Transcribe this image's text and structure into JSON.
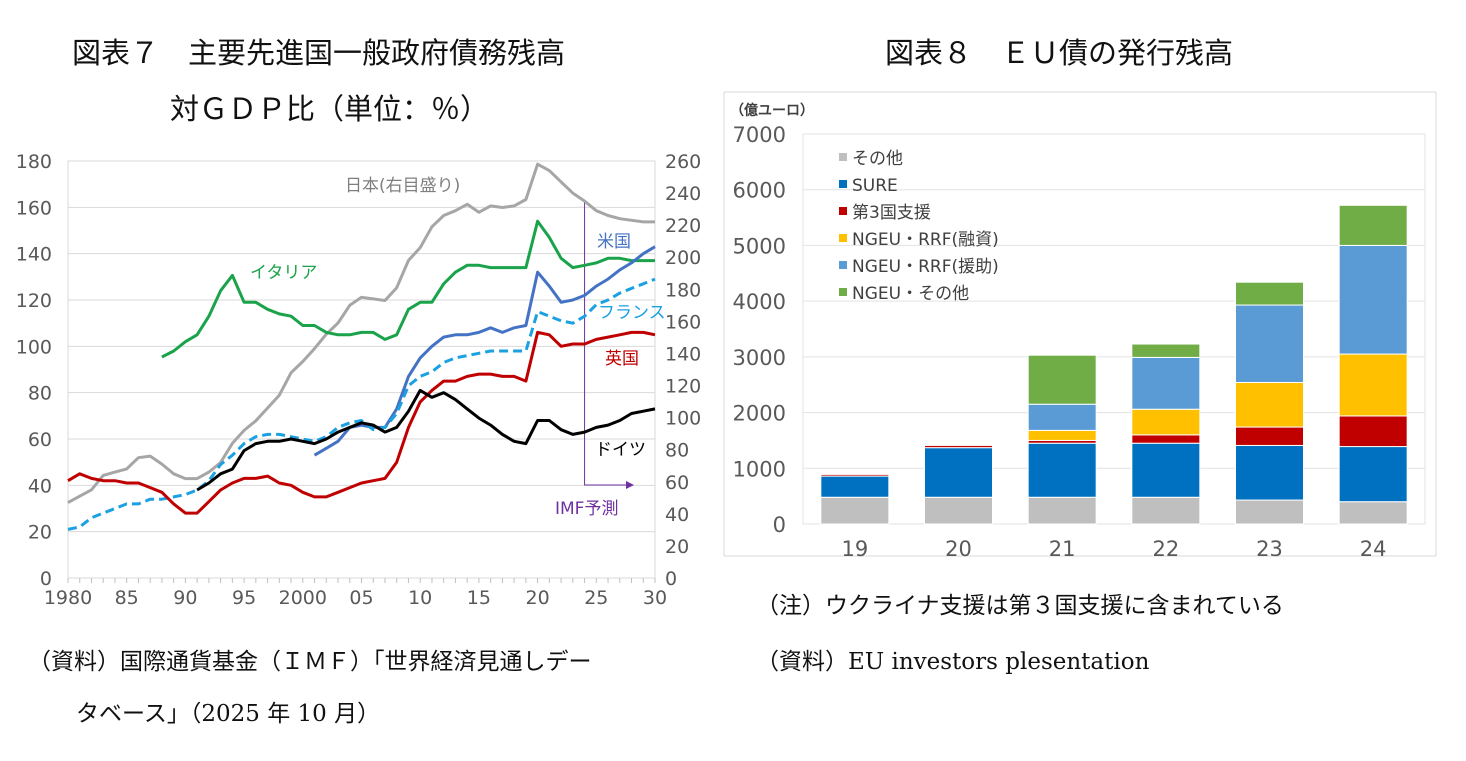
{
  "fig7": {
    "title_line1": "図表７　主要先進国一般政府債務残高",
    "title_line2": "対ＧＤＰ比（単位：％）",
    "source_line1": "（資料）国際通貨基金（ＩＭＦ）「世界経済見通しデー",
    "source_line2": "タベース」（2025 年 10 月）"
  },
  "fig8": {
    "title": "図表８　ＥＵ債の発行残高",
    "note": "（注）ウクライナ支援は第３国支援に含まれている",
    "source": "（資料）EU investors plesentation"
  },
  "chart_data": [
    {
      "type": "line",
      "x_tick_labels": [
        "1980",
        "85",
        "90",
        "95",
        "2000",
        "05",
        "10",
        "15",
        "20",
        "25",
        "30"
      ],
      "xlim": [
        1980,
        2030
      ],
      "ylim_left": [
        0,
        180
      ],
      "yticks_left": [
        0,
        20,
        40,
        60,
        80,
        100,
        120,
        140,
        160,
        180
      ],
      "ylim_right": [
        0,
        260
      ],
      "yticks_right": [
        0,
        20,
        40,
        60,
        80,
        100,
        120,
        140,
        160,
        180,
        200,
        220,
        240,
        260
      ],
      "grid": true,
      "annotation": {
        "text": "IMF予測",
        "from_year": 2024,
        "color": "#7030a0"
      },
      "series": [
        {
          "name": "日本(右目盛り)",
          "axis": "right",
          "color": "#a6a6a6",
          "dashed": false,
          "start": 1980,
          "values": [
            47,
            51,
            55,
            64,
            66,
            68,
            75,
            76,
            71,
            65,
            62,
            62,
            66,
            72,
            84,
            92,
            98,
            106,
            114,
            128,
            135,
            143,
            152,
            159,
            170,
            175,
            174,
            173,
            181,
            198,
            206,
            219,
            226,
            229,
            233,
            228,
            232,
            231,
            232,
            236,
            258,
            254,
            247,
            240,
            235,
            229,
            226,
            224,
            223,
            222,
            222
          ]
        },
        {
          "name": "イタリア",
          "axis": "left",
          "color": "#1aa34a",
          "dashed": false,
          "start": 1988,
          "values": [
            95.4,
            98,
            102,
            105,
            113,
            124,
            130.6,
            119,
            119,
            116,
            114,
            113,
            109,
            109,
            106,
            105,
            105,
            106,
            106,
            103,
            105,
            116,
            119,
            119,
            127,
            132,
            135,
            135,
            134,
            134,
            134,
            134,
            154,
            147,
            138,
            134,
            135,
            136,
            138,
            138,
            137,
            137,
            137
          ]
        },
        {
          "name": "米国",
          "axis": "left",
          "color": "#4472c4",
          "dashed": false,
          "start": 2001,
          "values": [
            53,
            56,
            59,
            65,
            66,
            65,
            65,
            73,
            87,
            95,
            100,
            104,
            105,
            105,
            106,
            108,
            106,
            108,
            109,
            132,
            126,
            119,
            120,
            122,
            126,
            129,
            133,
            136,
            140,
            143
          ]
        },
        {
          "name": "フランス",
          "axis": "left",
          "color": "#1ba1e2",
          "dashed": true,
          "start": 1980,
          "values": [
            21,
            22,
            26,
            28,
            30,
            32,
            32,
            34,
            34,
            35,
            36,
            38,
            42,
            49,
            53,
            58,
            61,
            62,
            62,
            61,
            60,
            59,
            61,
            65,
            67,
            68,
            64,
            65,
            71,
            83,
            87,
            89,
            93,
            95,
            96,
            97,
            98,
            98,
            98,
            98,
            115,
            113,
            111,
            110,
            113,
            118,
            120,
            123,
            125,
            127,
            129
          ]
        },
        {
          "name": "英国",
          "axis": "left",
          "color": "#c00000",
          "dashed": false,
          "start": 1980,
          "values": [
            42,
            45,
            43,
            42,
            42,
            41,
            41,
            39,
            37,
            32,
            28,
            28,
            33,
            38,
            41,
            43,
            43,
            44,
            41,
            40,
            37,
            35,
            35,
            37,
            39,
            41,
            42,
            43,
            50,
            65,
            76,
            81,
            85,
            85,
            87,
            88,
            88,
            87,
            87,
            85,
            106,
            105,
            100,
            101,
            101,
            103,
            104,
            105,
            106,
            106,
            105
          ]
        },
        {
          "name": "ドイツ",
          "axis": "left",
          "color": "#000000",
          "dashed": false,
          "start": 1991,
          "values": [
            38,
            41,
            45,
            47,
            55,
            58,
            59,
            59,
            60,
            59,
            58,
            60,
            63,
            65,
            67,
            66,
            63,
            65,
            72,
            81,
            78,
            80,
            77,
            73,
            69,
            66,
            62,
            59,
            58,
            68,
            68,
            64,
            62,
            63,
            65,
            66,
            68,
            71,
            72,
            73
          ]
        }
      ]
    },
    {
      "type": "bar",
      "stacked": true,
      "ylabel": "（億ユーロ）",
      "ylim": [
        0,
        7000
      ],
      "yticks": [
        0,
        1000,
        2000,
        3000,
        4000,
        5000,
        6000,
        7000
      ],
      "categories": [
        "19",
        "20",
        "21",
        "22",
        "23",
        "24"
      ],
      "grid": true,
      "legend_position": "top-left",
      "series": [
        {
          "name": "その他",
          "color": "#bfbfbf",
          "values": [
            480,
            480,
            480,
            480,
            430,
            400
          ]
        },
        {
          "name": "SURE",
          "color": "#0070c0",
          "values": [
            380,
            890,
            970,
            970,
            980,
            990
          ]
        },
        {
          "name": "第3国支援",
          "color": "#c00000",
          "values": [
            30,
            40,
            50,
            150,
            330,
            550
          ]
        },
        {
          "name": "NGEU・RRF(融資)",
          "color": "#ffc000",
          "values": [
            0,
            0,
            180,
            460,
            800,
            1110
          ]
        },
        {
          "name": "NGEU・RRF(援助)",
          "color": "#5b9bd5",
          "values": [
            0,
            0,
            470,
            930,
            1390,
            1950
          ]
        },
        {
          "name": "NGEU・その他",
          "color": "#70ad47",
          "values": [
            0,
            0,
            880,
            240,
            410,
            720
          ]
        }
      ]
    }
  ]
}
